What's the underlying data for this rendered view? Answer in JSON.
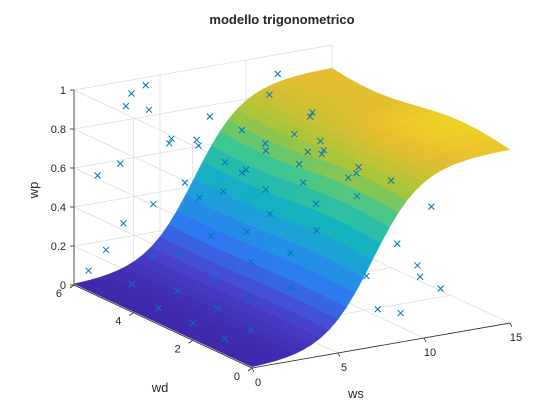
{
  "figure": {
    "background": "#ffffff"
  },
  "chart_data": {
    "type": "scatter3d",
    "title": "modello trigonometrico",
    "xlabel": "ws",
    "ylabel": "wd",
    "zlabel": "wp",
    "xlim": [
      0,
      15
    ],
    "ylim": [
      0,
      6
    ],
    "zlim": [
      0,
      1
    ],
    "x_ticks": [
      "0",
      "5",
      "10",
      "15"
    ],
    "y_ticks": [
      "0",
      "2",
      "4",
      "6"
    ],
    "z_ticks": [
      "0",
      "0.2",
      "0.4",
      "0.6",
      "0.8",
      "1"
    ],
    "grid": true,
    "marker": "x",
    "marker_color": "#0072BD",
    "surface_colormap": "parula",
    "surface_colors": [
      "#3E26A8",
      "#4845D0",
      "#2E78F2",
      "#1F9AE0",
      "#14B4BE",
      "#3EC790",
      "#A7C53A",
      "#E7BD2F",
      "#F9FB0E"
    ],
    "surface_model": "wp ≈ sigmoid(ws) with cut-out at high ws, approaching 0.8–1",
    "scatter_points": [
      {
        "ws": 0.5,
        "wd": 5.8,
        "wp": 0.08
      },
      {
        "ws": 1.0,
        "wd": 5.5,
        "wp": 0.2
      },
      {
        "ws": 1.5,
        "wd": 5.2,
        "wp": 0.35
      },
      {
        "ws": 1.2,
        "wd": 5.9,
        "wp": 0.55
      },
      {
        "ws": 2.0,
        "wd": 5.6,
        "wp": 0.62
      },
      {
        "ws": 2.5,
        "wd": 5.7,
        "wp": 0.9
      },
      {
        "ws": 3.0,
        "wd": 5.8,
        "wp": 0.95
      },
      {
        "ws": 3.5,
        "wd": 5.5,
        "wp": 0.88
      },
      {
        "ws": 4.0,
        "wd": 5.9,
        "wp": 0.97
      },
      {
        "ws": 4.5,
        "wd": 5.4,
        "wp": 0.7
      },
      {
        "ws": 0.8,
        "wd": 4.5,
        "wp": 0.1
      },
      {
        "ws": 1.5,
        "wd": 4.2,
        "wp": 0.25
      },
      {
        "ws": 2.2,
        "wd": 4.6,
        "wp": 0.48
      },
      {
        "ws": 3.0,
        "wd": 4.0,
        "wp": 0.62
      },
      {
        "ws": 3.6,
        "wd": 4.8,
        "wp": 0.78
      },
      {
        "ws": 4.2,
        "wd": 4.3,
        "wp": 0.8
      },
      {
        "ws": 5.0,
        "wd": 4.7,
        "wp": 0.73
      },
      {
        "ws": 5.5,
        "wd": 4.1,
        "wp": 0.68
      },
      {
        "ws": 6.0,
        "wd": 4.9,
        "wp": 0.85
      },
      {
        "ws": 7.0,
        "wd": 4.4,
        "wp": 0.8
      },
      {
        "ws": 0.6,
        "wd": 3.5,
        "wp": 0.05
      },
      {
        "ws": 1.2,
        "wd": 3.2,
        "wp": 0.15
      },
      {
        "ws": 2.0,
        "wd": 3.6,
        "wp": 0.3
      },
      {
        "ws": 2.8,
        "wd": 3.0,
        "wp": 0.42
      },
      {
        "ws": 3.5,
        "wd": 3.8,
        "wp": 0.55
      },
      {
        "ws": 4.2,
        "wd": 3.4,
        "wp": 0.6
      },
      {
        "ws": 5.0,
        "wd": 3.1,
        "wp": 0.72
      },
      {
        "ws": 5.8,
        "wd": 3.7,
        "wp": 0.65
      },
      {
        "ws": 6.5,
        "wd": 3.3,
        "wp": 0.78
      },
      {
        "ws": 7.5,
        "wd": 3.9,
        "wp": 0.76
      },
      {
        "ws": 8.5,
        "wd": 3.5,
        "wp": 0.82
      },
      {
        "ws": 9.5,
        "wd": 3.2,
        "wp": 0.79
      },
      {
        "ws": 0.9,
        "wd": 2.5,
        "wp": 0.04
      },
      {
        "ws": 1.8,
        "wd": 2.2,
        "wp": 0.12
      },
      {
        "ws": 2.6,
        "wd": 2.8,
        "wp": 0.22
      },
      {
        "ws": 3.4,
        "wd": 2.0,
        "wp": 0.35
      },
      {
        "ws": 4.2,
        "wd": 2.6,
        "wp": 0.45
      },
      {
        "ws": 5.0,
        "wd": 2.3,
        "wp": 0.55
      },
      {
        "ws": 5.8,
        "wd": 2.9,
        "wp": 0.62
      },
      {
        "ws": 6.6,
        "wd": 2.1,
        "wp": 0.7
      },
      {
        "ws": 7.4,
        "wd": 2.7,
        "wp": 0.74
      },
      {
        "ws": 8.2,
        "wd": 2.4,
        "wp": 0.8
      },
      {
        "ws": 9.0,
        "wd": 2.8,
        "wp": 0.78
      },
      {
        "ws": 10.0,
        "wd": 2.2,
        "wp": 0.72
      },
      {
        "ws": 1.0,
        "wd": 1.5,
        "wp": 0.03
      },
      {
        "ws": 2.0,
        "wd": 1.2,
        "wp": 0.08
      },
      {
        "ws": 3.0,
        "wd": 1.8,
        "wp": 0.18
      },
      {
        "ws": 4.0,
        "wd": 1.0,
        "wp": 0.28
      },
      {
        "ws": 5.0,
        "wd": 1.6,
        "wp": 0.4
      },
      {
        "ws": 6.0,
        "wd": 1.3,
        "wp": 0.52
      },
      {
        "ws": 7.0,
        "wd": 1.9,
        "wp": 0.6
      },
      {
        "ws": 8.0,
        "wd": 1.1,
        "wp": 0.68
      },
      {
        "ws": 9.0,
        "wd": 1.7,
        "wp": 0.74
      },
      {
        "ws": 10.5,
        "wd": 1.4,
        "wp": 0.7
      },
      {
        "ws": 11.0,
        "wd": 0.8,
        "wp": 0.3
      },
      {
        "ws": 11.5,
        "wd": 1.0,
        "wp": 0.22
      },
      {
        "ws": 12.0,
        "wd": 0.6,
        "wp": 0.18
      },
      {
        "ws": 9.5,
        "wd": 0.5,
        "wp": 0.1
      },
      {
        "ws": 8.0,
        "wd": 0.4,
        "wp": 0.15
      },
      {
        "ws": 7.0,
        "wd": 0.2,
        "wp": 0.35
      },
      {
        "ws": 10.0,
        "wd": 0.9,
        "wp": 0.42
      },
      {
        "ws": 12.5,
        "wd": 1.2,
        "wp": 0.55
      },
      {
        "ws": 11.0,
        "wd": 4.5,
        "wp": 0.62
      },
      {
        "ws": 12.0,
        "wd": 5.0,
        "wp": 0.75
      },
      {
        "ws": 13.0,
        "wd": 5.5,
        "wp": 0.72
      },
      {
        "ws": 12.5,
        "wd": 4.0,
        "wp": 0.5
      },
      {
        "ws": 10.5,
        "wd": 5.5,
        "wp": 0.85
      },
      {
        "ws": 11.5,
        "wd": 5.8,
        "wp": 0.92
      }
    ]
  }
}
